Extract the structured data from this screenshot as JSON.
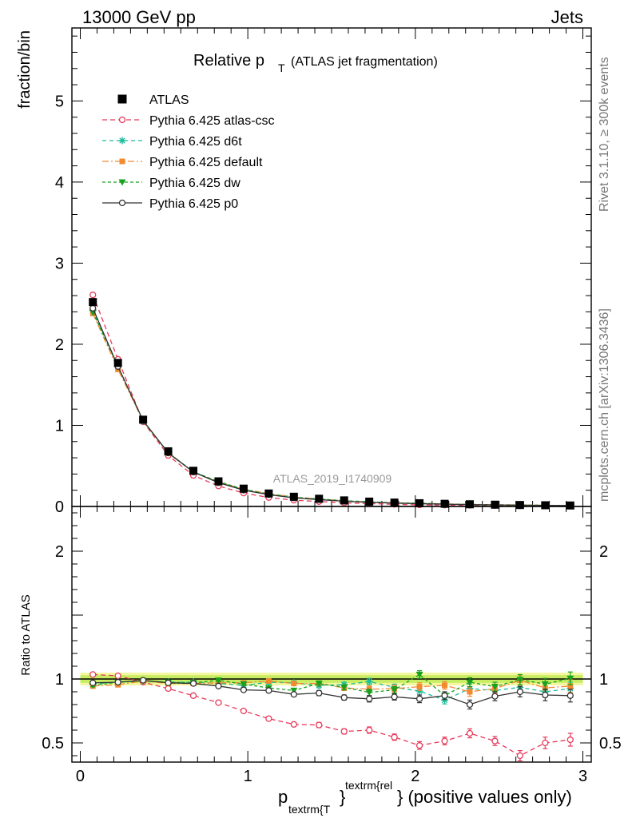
{
  "header": {
    "left_title": "13000 GeV pp",
    "right_title": "Jets",
    "watermark": "ATLAS_2019_I1740909",
    "side_top": "Rivet 3.1.10, ≥ 300k events",
    "side_bottom": "mcplots.cern.ch [arXiv:1306.3436]"
  },
  "chart_data": {
    "type": "line",
    "title_main": "Relative p",
    "title_sub": "T",
    "title_rest": "(ATLAS jet fragmentation)",
    "xlabel_p": "p",
    "xlabel_sub": "textrm{T",
    "xlabel_brace": "}",
    "xlabel_sup": "textrm{rel",
    "xlabel_rest": "} (positive values only)",
    "ylabel_main": "fraction/bin",
    "ylabel_ratio": "Ratio to ATLAS",
    "xlim": [
      -0.05,
      3.05
    ],
    "ylim_main": [
      0,
      5.9
    ],
    "ylim_ratio": [
      0.35,
      2.35
    ],
    "x_ticks": [
      "0",
      "1",
      "2",
      "3"
    ],
    "y_ticks_main": [
      "0",
      "1",
      "2",
      "3",
      "4",
      "5"
    ],
    "y_ticks_ratio": [
      "0.5",
      "1",
      "2"
    ],
    "x": [
      0.075,
      0.225,
      0.375,
      0.525,
      0.675,
      0.825,
      0.975,
      1.125,
      1.275,
      1.425,
      1.575,
      1.725,
      1.875,
      2.025,
      2.175,
      2.325,
      2.475,
      2.625,
      2.775,
      2.925
    ],
    "data": {
      "name": "ATLAS",
      "values": [
        2.52,
        1.77,
        1.07,
        0.68,
        0.44,
        0.31,
        0.22,
        0.16,
        0.12,
        0.095,
        0.075,
        0.06,
        0.048,
        0.04,
        0.033,
        0.027,
        0.022,
        0.018,
        0.015,
        0.012
      ]
    },
    "series": [
      {
        "name": "Pythia 6.425 atlas-csc",
        "color": "#e8395a",
        "dash": "6,4",
        "marker": "open-circle",
        "ratio": [
          1.035,
          1.025,
          0.975,
          0.925,
          0.87,
          0.815,
          0.75,
          0.69,
          0.645,
          0.64,
          0.59,
          0.6,
          0.545,
          0.48,
          0.515,
          0.575,
          0.515,
          0.4,
          0.5,
          0.525
        ],
        "ratio_err": [
          0.01,
          0.01,
          0.01,
          0.01,
          0.01,
          0.01,
          0.01,
          0.015,
          0.015,
          0.02,
          0.02,
          0.025,
          0.025,
          0.03,
          0.03,
          0.035,
          0.035,
          0.04,
          0.045,
          0.05
        ]
      },
      {
        "name": "Pythia 6.425 d6t",
        "color": "#1abc9c",
        "dash": "5,4",
        "marker": "star",
        "ratio": [
          0.96,
          0.975,
          0.985,
          0.975,
          0.975,
          0.965,
          0.95,
          0.975,
          0.97,
          0.95,
          0.955,
          0.98,
          0.935,
          0.905,
          0.835,
          0.925,
          0.91,
          0.935,
          0.9,
          0.925
        ],
        "ratio_err": [
          0.01,
          0.01,
          0.01,
          0.01,
          0.01,
          0.01,
          0.012,
          0.015,
          0.015,
          0.02,
          0.02,
          0.025,
          0.025,
          0.03,
          0.03,
          0.035,
          0.035,
          0.04,
          0.045,
          0.05
        ]
      },
      {
        "name": "Pythia 6.425 default",
        "color": "#f28a30",
        "dash": "8,3,2,3",
        "marker": "filled-square",
        "ratio": [
          0.945,
          0.955,
          0.985,
          0.965,
          0.965,
          0.97,
          0.97,
          0.985,
          0.965,
          0.965,
          0.93,
          0.92,
          0.925,
          0.94,
          0.95,
          0.9,
          0.925,
          0.99,
          0.93,
          0.945
        ],
        "ratio_err": [
          0.01,
          0.01,
          0.01,
          0.01,
          0.01,
          0.01,
          0.012,
          0.015,
          0.015,
          0.02,
          0.02,
          0.025,
          0.025,
          0.03,
          0.03,
          0.035,
          0.035,
          0.04,
          0.045,
          0.05
        ]
      },
      {
        "name": "Pythia 6.425 dw",
        "color": "#18a11e",
        "dash": "4,3",
        "marker": "filled-triangle-down",
        "ratio": [
          0.95,
          0.975,
          0.985,
          0.975,
          0.97,
          0.99,
          0.96,
          0.93,
          0.91,
          0.965,
          0.935,
          0.895,
          0.915,
          1.035,
          0.87,
          0.975,
          0.94,
          0.995,
          0.96,
          1.005
        ],
        "ratio_err": [
          0.01,
          0.01,
          0.01,
          0.01,
          0.01,
          0.01,
          0.012,
          0.015,
          0.015,
          0.02,
          0.02,
          0.025,
          0.025,
          0.03,
          0.03,
          0.035,
          0.035,
          0.04,
          0.045,
          0.05
        ]
      },
      {
        "name": "Pythia 6.425 p0",
        "color": "#333333",
        "dash": "",
        "marker": "open-circle",
        "ratio": [
          0.97,
          0.975,
          0.99,
          0.97,
          0.965,
          0.945,
          0.915,
          0.91,
          0.88,
          0.89,
          0.855,
          0.845,
          0.86,
          0.845,
          0.87,
          0.8,
          0.865,
          0.9,
          0.875,
          0.87
        ],
        "ratio_err": [
          0.01,
          0.01,
          0.01,
          0.01,
          0.01,
          0.01,
          0.012,
          0.015,
          0.015,
          0.02,
          0.02,
          0.025,
          0.025,
          0.03,
          0.03,
          0.035,
          0.035,
          0.04,
          0.045,
          0.05
        ]
      }
    ],
    "ratio_band_inner": 0.03,
    "ratio_band_outer": 0.05
  }
}
